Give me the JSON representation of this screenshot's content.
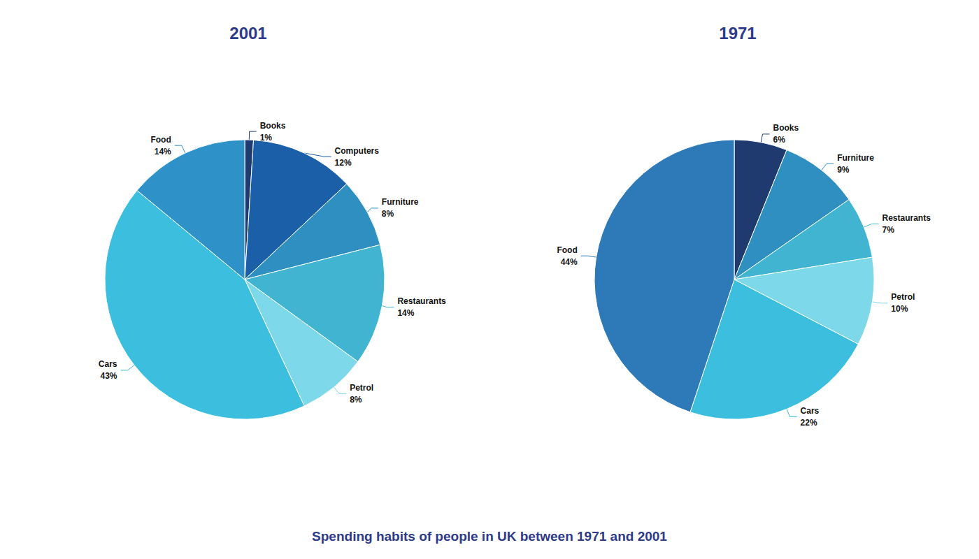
{
  "chart_data": [
    {
      "type": "pie",
      "title": "2001",
      "categories": [
        "Books",
        "Computers",
        "Furniture",
        "Restaurants",
        "Petrol",
        "Cars",
        "Food"
      ],
      "values": [
        1,
        12,
        8,
        14,
        8,
        43,
        14
      ],
      "value_labels": [
        "1%",
        "12%",
        "8%",
        "14%",
        "8%",
        "43%",
        "14%"
      ],
      "colors": [
        "#1e3a6e",
        "#1a5fa8",
        "#2e8fc0",
        "#40b4d0",
        "#7dd8ea",
        "#3cbede",
        "#2e92c8"
      ],
      "data_labels": true,
      "annotations": [
        "Spending habits of people in UK between 1971 and 2001"
      ]
    },
    {
      "type": "pie",
      "title": "1971",
      "categories": [
        "Books",
        "Furniture",
        "Restaurants",
        "Petrol",
        "Cars",
        "Food"
      ],
      "values": [
        6,
        9,
        7,
        10,
        22,
        44
      ],
      "value_labels": [
        "6%",
        "9%",
        "7%",
        "10%",
        "22%",
        "44%"
      ],
      "colors": [
        "#1e3a6e",
        "#2e8fc0",
        "#40b4d0",
        "#7dd8ea",
        "#3cbede",
        "#2e7ab8"
      ],
      "data_labels": true
    }
  ]
}
